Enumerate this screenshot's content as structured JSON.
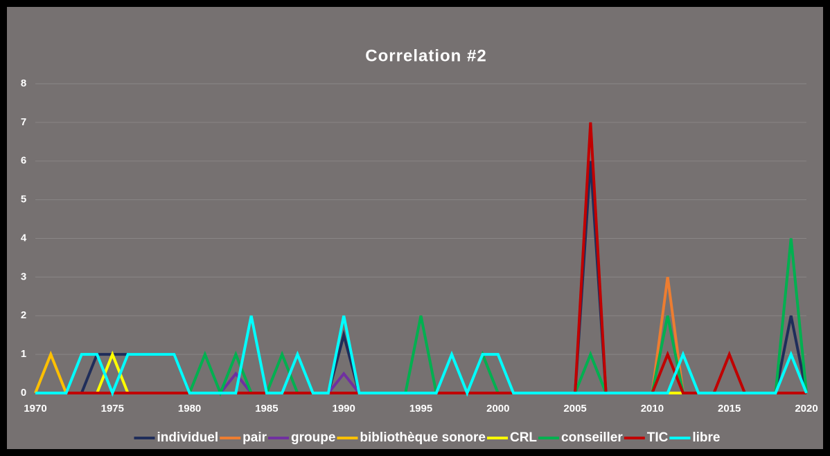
{
  "chart_data": {
    "type": "line",
    "title": "Correlation #2",
    "x": [
      1970,
      1971,
      1972,
      1973,
      1974,
      1975,
      1976,
      1977,
      1978,
      1979,
      1980,
      1981,
      1982,
      1983,
      1984,
      1985,
      1986,
      1987,
      1988,
      1989,
      1990,
      1991,
      1992,
      1993,
      1994,
      1995,
      1996,
      1997,
      1998,
      1999,
      2000,
      2001,
      2002,
      2003,
      2004,
      2005,
      2006,
      2007,
      2008,
      2009,
      2010,
      2011,
      2012,
      2013,
      2014,
      2015,
      2016,
      2017,
      2018,
      2019,
      2020
    ],
    "xlim": [
      1970,
      2020
    ],
    "xticks": [
      1970,
      1975,
      1980,
      1985,
      1990,
      1995,
      2000,
      2005,
      2010,
      2015,
      2020
    ],
    "ylim": [
      0,
      8
    ],
    "yticks": [
      0,
      1,
      2,
      3,
      4,
      5,
      6,
      7,
      8
    ],
    "grid": true,
    "legend": "bottom",
    "series": [
      {
        "name": "individuel",
        "color": "#1f2d5a",
        "values": [
          0,
          0,
          0,
          0,
          1,
          1,
          1,
          1,
          1,
          1,
          0,
          0,
          0,
          0,
          0,
          0,
          0,
          0,
          0,
          0,
          1.5,
          0,
          0,
          0,
          0,
          0,
          0,
          0,
          0,
          0,
          0,
          0,
          0,
          0,
          0,
          0,
          6,
          0,
          0,
          0,
          0,
          0,
          0,
          0,
          0,
          0,
          0,
          0,
          0,
          2,
          0
        ]
      },
      {
        "name": "pair",
        "color": "#ed7d31",
        "values": [
          0,
          0,
          0,
          0,
          0,
          0,
          0,
          0,
          0,
          0,
          0,
          0,
          0,
          0,
          0,
          0,
          0,
          0,
          0,
          0,
          0,
          0,
          0,
          0,
          0,
          0,
          0,
          0,
          0,
          0,
          0,
          0,
          0,
          0,
          0,
          0,
          0,
          0,
          0,
          0,
          0,
          3,
          0,
          0,
          0,
          0,
          0,
          0,
          0,
          0,
          0
        ]
      },
      {
        "name": "groupe",
        "color": "#7030a0",
        "values": [
          0,
          0,
          0,
          0,
          0,
          0,
          0,
          0,
          0,
          0,
          0,
          0,
          0,
          0.5,
          0,
          0,
          0,
          0,
          0,
          0,
          0.5,
          0,
          0,
          0,
          0,
          0,
          0,
          0,
          0,
          0,
          0,
          0,
          0,
          0,
          0,
          0,
          0,
          0,
          0,
          0,
          0,
          0,
          0,
          0,
          0,
          0,
          0,
          0,
          0,
          0,
          0
        ]
      },
      {
        "name": "bibliothèque sonore",
        "color": "#ffc000",
        "values": [
          0,
          1,
          0,
          0,
          0,
          0,
          0,
          0,
          0,
          0,
          0,
          0,
          0,
          0,
          0,
          0,
          0,
          0,
          0,
          0,
          0,
          0,
          0,
          0,
          0,
          0,
          0,
          0,
          0,
          0,
          0,
          0,
          0,
          0,
          0,
          0,
          0,
          0,
          0,
          0,
          0,
          0,
          0,
          0,
          0,
          0,
          0,
          0,
          0,
          0,
          0
        ]
      },
      {
        "name": "CRL",
        "color": "#ffff00",
        "values": [
          0,
          0,
          0,
          0,
          0,
          1,
          0,
          0,
          0,
          0,
          0,
          0,
          0,
          0,
          0,
          0,
          0,
          0,
          0,
          0,
          0,
          0,
          0,
          0,
          0,
          0,
          0,
          0,
          0,
          0,
          0,
          0,
          0,
          0,
          0,
          0,
          0,
          0,
          0,
          0,
          0,
          0,
          0,
          0,
          0,
          0,
          0,
          0,
          0,
          0,
          0
        ]
      },
      {
        "name": "conseiller",
        "color": "#00b050",
        "values": [
          0,
          0,
          0,
          0,
          0,
          0,
          0,
          0,
          0,
          0,
          0,
          1,
          0,
          1,
          0,
          0,
          1,
          0,
          0,
          0,
          0,
          0,
          0,
          0,
          0,
          2,
          0,
          0,
          0,
          1,
          0,
          0,
          0,
          0,
          0,
          0,
          1,
          0,
          0,
          0,
          0,
          2,
          0,
          0,
          0,
          0,
          0,
          0,
          0,
          4,
          0
        ]
      },
      {
        "name": "TIC",
        "color": "#c00000",
        "values": [
          0,
          0,
          0,
          0,
          0,
          0,
          0,
          0,
          0,
          0,
          0,
          0,
          0,
          0,
          0,
          0,
          0,
          0,
          0,
          0,
          0,
          0,
          0,
          0,
          0,
          0,
          0,
          0,
          0,
          0,
          0,
          0,
          0,
          0,
          0,
          0,
          7,
          0,
          0,
          0,
          0,
          1,
          0,
          0,
          0,
          1,
          0,
          0,
          0,
          0,
          0
        ]
      },
      {
        "name": "libre",
        "color": "#00ffff",
        "values": [
          0,
          0,
          0,
          1,
          1,
          0,
          1,
          1,
          1,
          1,
          0,
          0,
          0,
          0,
          2,
          0,
          0,
          1,
          0,
          0,
          2,
          0,
          0,
          0,
          0,
          0,
          0,
          1,
          0,
          1,
          1,
          0,
          0,
          0,
          0,
          0,
          0,
          0,
          0,
          0,
          0,
          0,
          1,
          0,
          0,
          0,
          0,
          0,
          0,
          1,
          0
        ]
      }
    ]
  }
}
